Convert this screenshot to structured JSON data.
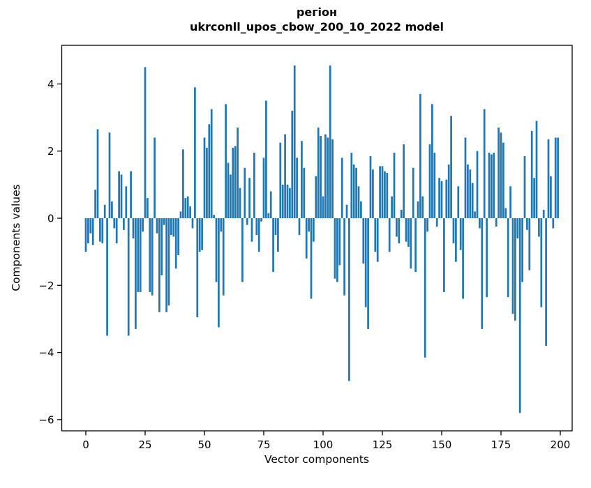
{
  "chart_data": {
    "type": "bar",
    "title_line1": "регіон",
    "title_line2": "ukrconll_upos_cbow_200_10_2022 model",
    "xlabel": "Vector components",
    "ylabel": "Components values",
    "x_tick_labels": [
      "0",
      "25",
      "50",
      "75",
      "100",
      "125",
      "150",
      "175",
      "200"
    ],
    "x_tick_values": [
      0,
      25,
      50,
      75,
      100,
      125,
      150,
      175,
      200
    ],
    "y_tick_labels": [
      "4",
      "2",
      "0",
      "−2",
      "−4",
      "−6"
    ],
    "y_tick_values": [
      4,
      2,
      0,
      -2,
      -4,
      -6
    ],
    "xlim": [
      -10.3,
      205.0
    ],
    "ylim": [
      -6.33,
      5.15
    ],
    "grid": false,
    "legend": null,
    "bar_color": "#1f77b4",
    "n_components": 200,
    "values": [
      -1.0,
      -0.75,
      -0.45,
      -0.8,
      0.85,
      2.65,
      -0.7,
      -0.75,
      0.4,
      -3.5,
      2.55,
      0.5,
      -0.3,
      -0.75,
      1.4,
      1.3,
      -0.35,
      0.95,
      -3.5,
      1.4,
      -0.6,
      -3.3,
      -2.2,
      -2.2,
      -0.4,
      4.5,
      0.6,
      -2.2,
      -2.3,
      2.4,
      -0.45,
      -2.8,
      -1.7,
      -0.2,
      -2.8,
      -2.6,
      -0.5,
      -0.55,
      -1.5,
      -1.1,
      0.2,
      2.05,
      0.6,
      0.65,
      0.35,
      -0.3,
      3.9,
      -2.95,
      -1.0,
      -0.95,
      2.4,
      2.1,
      2.8,
      3.25,
      0.1,
      -1.9,
      -3.25,
      -0.4,
      -2.3,
      3.4,
      1.65,
      1.3,
      2.1,
      2.15,
      2.7,
      0.9,
      -1.9,
      1.5,
      -0.2,
      1.2,
      -0.7,
      1.95,
      -0.5,
      -1.0,
      -0.1,
      1.8,
      3.5,
      0.15,
      0.8,
      -1.6,
      -0.5,
      -1.0,
      2.25,
      1.0,
      2.5,
      1.0,
      0.9,
      3.2,
      4.55,
      1.8,
      -0.5,
      2.3,
      1.5,
      -1.2,
      -0.4,
      -2.4,
      -0.7,
      1.25,
      2.7,
      2.45,
      0.65,
      2.5,
      2.4,
      4.55,
      2.35,
      -1.8,
      -1.9,
      -1.4,
      1.8,
      -2.3,
      0.4,
      -4.85,
      1.95,
      1.6,
      1.5,
      0.95,
      0.5,
      -1.35,
      -2.65,
      -3.3,
      1.85,
      1.45,
      -1.0,
      -1.3,
      1.55,
      1.55,
      1.4,
      1.35,
      -1.0,
      0.65,
      1.95,
      -0.55,
      -0.75,
      0.25,
      2.2,
      -0.7,
      -0.85,
      -1.5,
      1.5,
      -1.6,
      0.5,
      3.7,
      0.65,
      -4.15,
      -0.4,
      2.2,
      3.4,
      1.95,
      -0.25,
      1.2,
      1.1,
      -2.2,
      1.15,
      1.6,
      3.05,
      -0.75,
      -1.3,
      0.95,
      -0.95,
      -2.4,
      2.4,
      1.6,
      1.45,
      1.05,
      0.2,
      2.0,
      -0.3,
      -3.3,
      3.25,
      -2.35,
      1.95,
      1.9,
      1.95,
      -0.25,
      2.7,
      2.55,
      2.25,
      0.3,
      -2.35,
      0.95,
      -2.85,
      -3.05,
      -0.6,
      -5.8,
      -1.9,
      1.85,
      -0.35,
      -1.55,
      2.6,
      1.2,
      2.9,
      -0.55,
      -2.65,
      0.25,
      -3.8,
      2.35,
      1.25,
      -0.3,
      2.4,
      2.4
    ]
  }
}
